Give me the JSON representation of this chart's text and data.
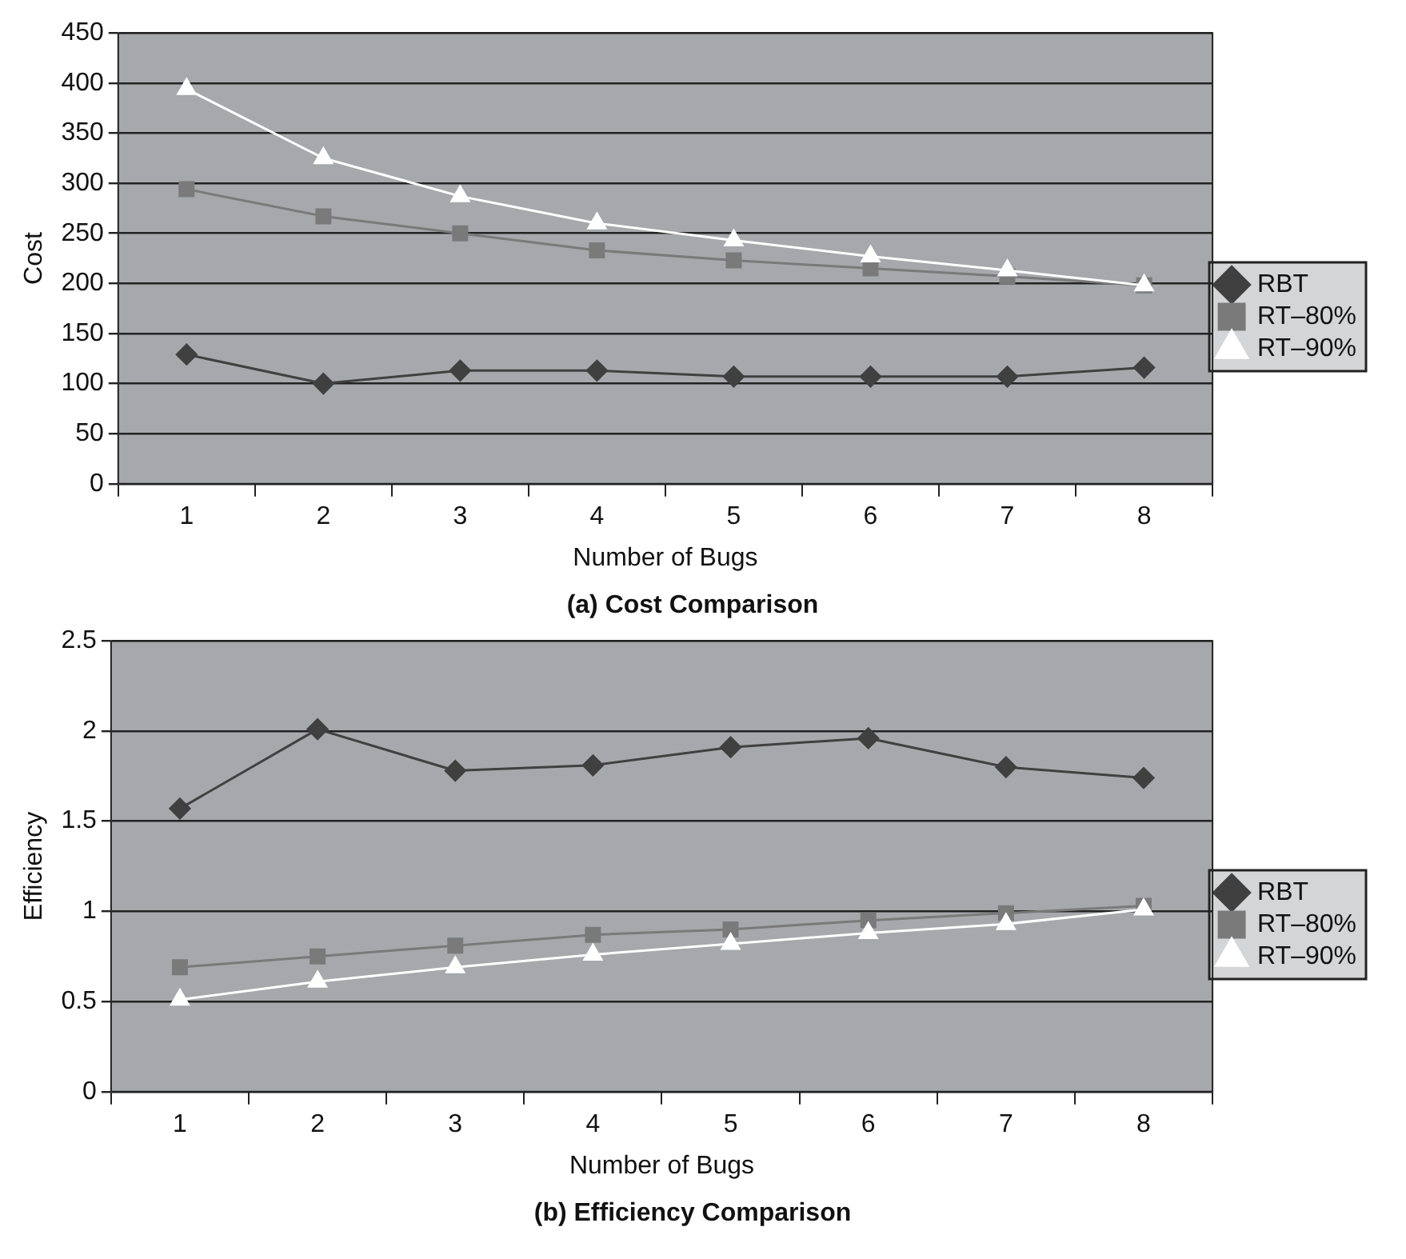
{
  "chart_data": [
    {
      "type": "line",
      "title": "(a) Cost Comparison",
      "xlabel": "Number of Bugs",
      "ylabel": "Cost",
      "categories": [
        "1",
        "2",
        "3",
        "4",
        "5",
        "6",
        "7",
        "8"
      ],
      "ylim": [
        0,
        450
      ],
      "yticks": [
        0,
        50,
        100,
        150,
        200,
        250,
        300,
        350,
        400,
        450
      ],
      "grid": "y",
      "legend": "right",
      "line_style": "solid",
      "series": [
        {
          "name": "RBT",
          "color": "#404040",
          "marker": "diamond",
          "values": [
            129,
            100,
            113,
            113,
            107,
            107,
            107,
            116
          ]
        },
        {
          "name": "RT–80%",
          "color": "#7a7a7a",
          "marker": "square",
          "values": [
            294,
            267,
            250,
            233,
            223,
            215,
            207,
            198
          ]
        },
        {
          "name": "RT–90%",
          "color": "#ffffff",
          "marker": "triangle",
          "values": [
            394,
            325,
            287,
            260,
            243,
            227,
            213,
            198
          ]
        }
      ]
    },
    {
      "type": "line",
      "title": "(b) Efficiency Comparison",
      "xlabel": "Number of Bugs",
      "ylabel": "Efficiency",
      "categories": [
        "1",
        "2",
        "3",
        "4",
        "5",
        "6",
        "7",
        "8"
      ],
      "ylim": [
        0,
        2.5
      ],
      "yticks": [
        0,
        0.5,
        1,
        1.5,
        2,
        2.5
      ],
      "grid": "y",
      "legend": "right",
      "line_style": "solid",
      "series": [
        {
          "name": "RBT",
          "color": "#404040",
          "marker": "diamond",
          "values": [
            1.57,
            2.01,
            1.78,
            1.81,
            1.91,
            1.96,
            1.8,
            1.74
          ]
        },
        {
          "name": "RT–80%",
          "color": "#7a7a7a",
          "marker": "square",
          "values": [
            0.69,
            0.75,
            0.81,
            0.87,
            0.9,
            0.95,
            0.99,
            1.03
          ]
        },
        {
          "name": "RT–90%",
          "color": "#ffffff",
          "marker": "triangle",
          "values": [
            0.51,
            0.61,
            0.69,
            0.76,
            0.82,
            0.88,
            0.93,
            1.01
          ]
        }
      ]
    }
  ]
}
